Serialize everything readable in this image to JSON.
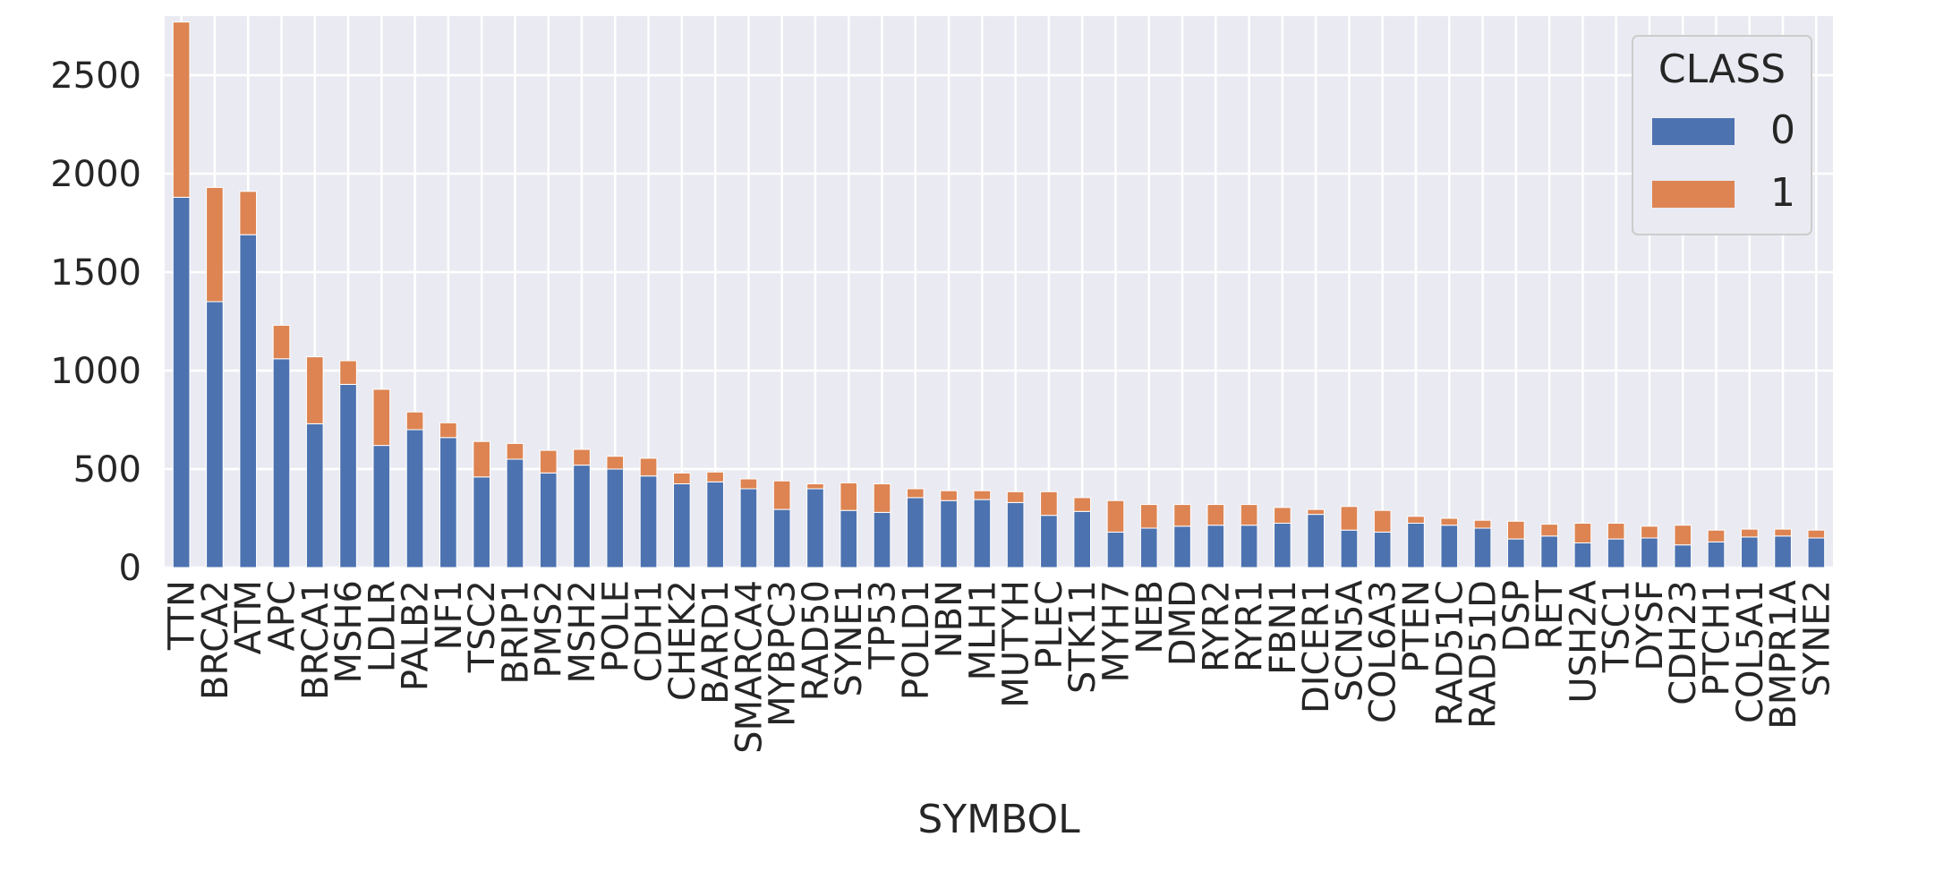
{
  "chart_data": {
    "type": "bar",
    "stacked": true,
    "xlabel": "SYMBOL",
    "ylabel": "",
    "ylim": [
      0,
      2800
    ],
    "yticks": [
      0,
      500,
      1000,
      1500,
      2000,
      2500
    ],
    "grid": true,
    "legend": {
      "title": "CLASS",
      "placement": "top-right"
    },
    "categories": [
      "TTN",
      "BRCA2",
      "ATM",
      "APC",
      "BRCA1",
      "MSH6",
      "LDLR",
      "PALB2",
      "NF1",
      "TSC2",
      "BRIP1",
      "PMS2",
      "MSH2",
      "POLE",
      "CDH1",
      "CHEK2",
      "BARD1",
      "SMARCA4",
      "MYBPC3",
      "RAD50",
      "SYNE1",
      "TP53",
      "POLD1",
      "NBN",
      "MLH1",
      "MUTYH",
      "PLEC",
      "STK11",
      "MYH7",
      "NEB",
      "DMD",
      "RYR2",
      "RYR1",
      "FBN1",
      "DICER1",
      "SCN5A",
      "COL6A3",
      "PTEN",
      "RAD51C",
      "RAD51D",
      "DSP",
      "RET",
      "USH2A",
      "TSC1",
      "DYSF",
      "CDH23",
      "PTCH1",
      "COL5A1",
      "BMPR1A",
      "SYNE2"
    ],
    "series": [
      {
        "name": "0",
        "color": "#4c72b0",
        "values": [
          1880,
          1350,
          1690,
          1060,
          730,
          930,
          620,
          700,
          660,
          460,
          550,
          480,
          520,
          500,
          465,
          425,
          435,
          400,
          295,
          400,
          290,
          280,
          355,
          340,
          345,
          330,
          265,
          285,
          180,
          200,
          210,
          215,
          215,
          225,
          270,
          190,
          180,
          225,
          215,
          200,
          145,
          160,
          125,
          145,
          150,
          115,
          130,
          155,
          160,
          150
        ]
      },
      {
        "name": "1",
        "color": "#dd8452",
        "values": [
          890,
          580,
          220,
          170,
          340,
          120,
          285,
          90,
          75,
          180,
          80,
          115,
          80,
          65,
          90,
          55,
          50,
          50,
          145,
          25,
          140,
          145,
          45,
          50,
          45,
          55,
          120,
          70,
          160,
          120,
          110,
          105,
          105,
          80,
          25,
          120,
          110,
          35,
          35,
          40,
          90,
          60,
          100,
          80,
          60,
          100,
          60,
          40,
          35,
          40
        ]
      }
    ]
  }
}
